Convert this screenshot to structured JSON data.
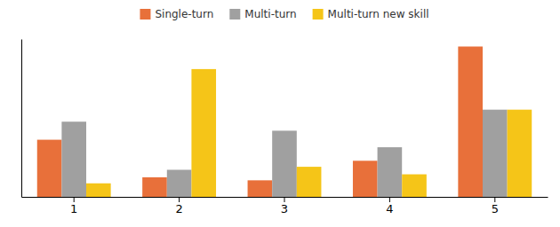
{
  "chart_data": {
    "type": "bar",
    "categories": [
      "1",
      "2",
      "3",
      "4",
      "5"
    ],
    "series": [
      {
        "name": "Single-turn",
        "color": "#E8703A",
        "values": [
          0.38,
          0.13,
          0.11,
          0.24,
          1.0
        ]
      },
      {
        "name": "Multi-turn",
        "color": "#A0A0A0",
        "values": [
          0.5,
          0.18,
          0.44,
          0.33,
          0.58
        ]
      },
      {
        "name": "Multi-turn new skill",
        "color": "#F5C518",
        "values": [
          0.09,
          0.85,
          0.2,
          0.15,
          0.58
        ]
      }
    ],
    "ylim": [
      0,
      1.05
    ],
    "tick_labels": "x",
    "grid": false,
    "legend": "top"
  }
}
